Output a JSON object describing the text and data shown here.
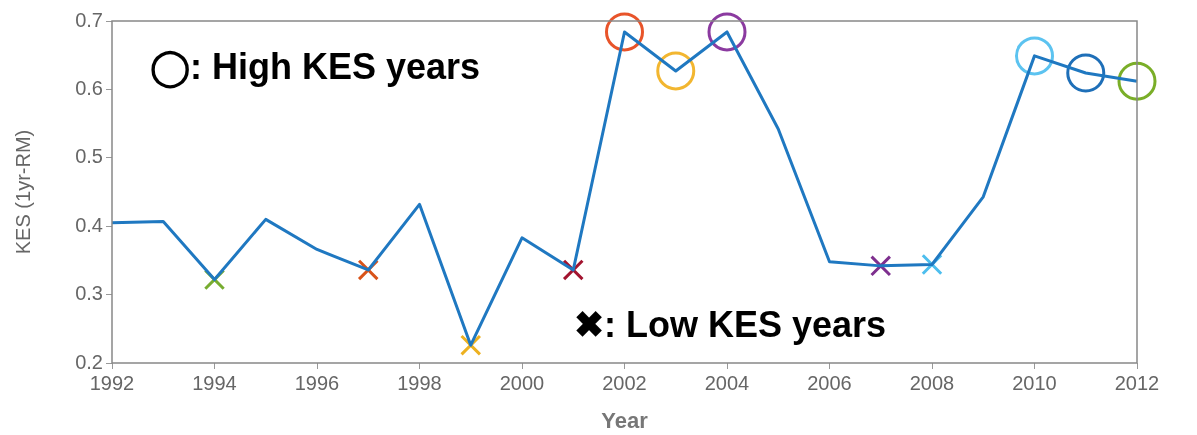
{
  "chart_data": {
    "type": "line",
    "xlabel": "Year",
    "ylabel": "KES (1yr-RM)",
    "annotations": [
      "◯: High KES years",
      "✖: Low KES years"
    ],
    "xlim": [
      1992,
      2012
    ],
    "xticks": [
      1992,
      1994,
      1996,
      1998,
      2000,
      2002,
      2004,
      2006,
      2008,
      2010,
      2012
    ],
    "ylim": [
      0.2,
      0.7
    ],
    "yticks": [
      0.2,
      0.3,
      0.4,
      0.5,
      0.6,
      0.7
    ],
    "grid": false,
    "legend": false,
    "series": [
      {
        "color": "#1f78c1",
        "marker": "none",
        "x": [
          1992,
          1993,
          1994,
          1995,
          1996,
          1997,
          1998,
          1999,
          2000,
          2001,
          2002,
          2003,
          2004,
          2005,
          2006,
          2007,
          2008,
          2009,
          2010,
          2011,
          2012
        ],
        "values": [
          0.405,
          0.407,
          0.322,
          0.41,
          0.366,
          0.336,
          0.432,
          0.226,
          0.383,
          0.336,
          0.684,
          0.627,
          0.684,
          0.542,
          0.348,
          0.342,
          0.344,
          0.443,
          0.649,
          0.624,
          0.612
        ]
      },
      {
        "type": "scatter",
        "marker": "cross",
        "x": [
          1994,
          1997,
          1999,
          2001,
          2007,
          2008
        ],
        "values": [
          0.322,
          0.336,
          0.226,
          0.336,
          0.342,
          0.344
        ],
        "colors": [
          "#77ac30",
          "#d95319",
          "#edb120",
          "#a2142f",
          "#7e2f8e",
          "#4dbeee"
        ]
      },
      {
        "type": "scatter",
        "marker": "circle",
        "x": [
          2002,
          2003,
          2004,
          2010,
          2011,
          2012
        ],
        "values": [
          0.684,
          0.627,
          0.684,
          0.649,
          0.624,
          0.612
        ],
        "colors": [
          "#e8542a",
          "#f2b630",
          "#8b3aa0",
          "#5cc3f0",
          "#1e6fb8",
          "#7aae28"
        ]
      }
    ]
  }
}
